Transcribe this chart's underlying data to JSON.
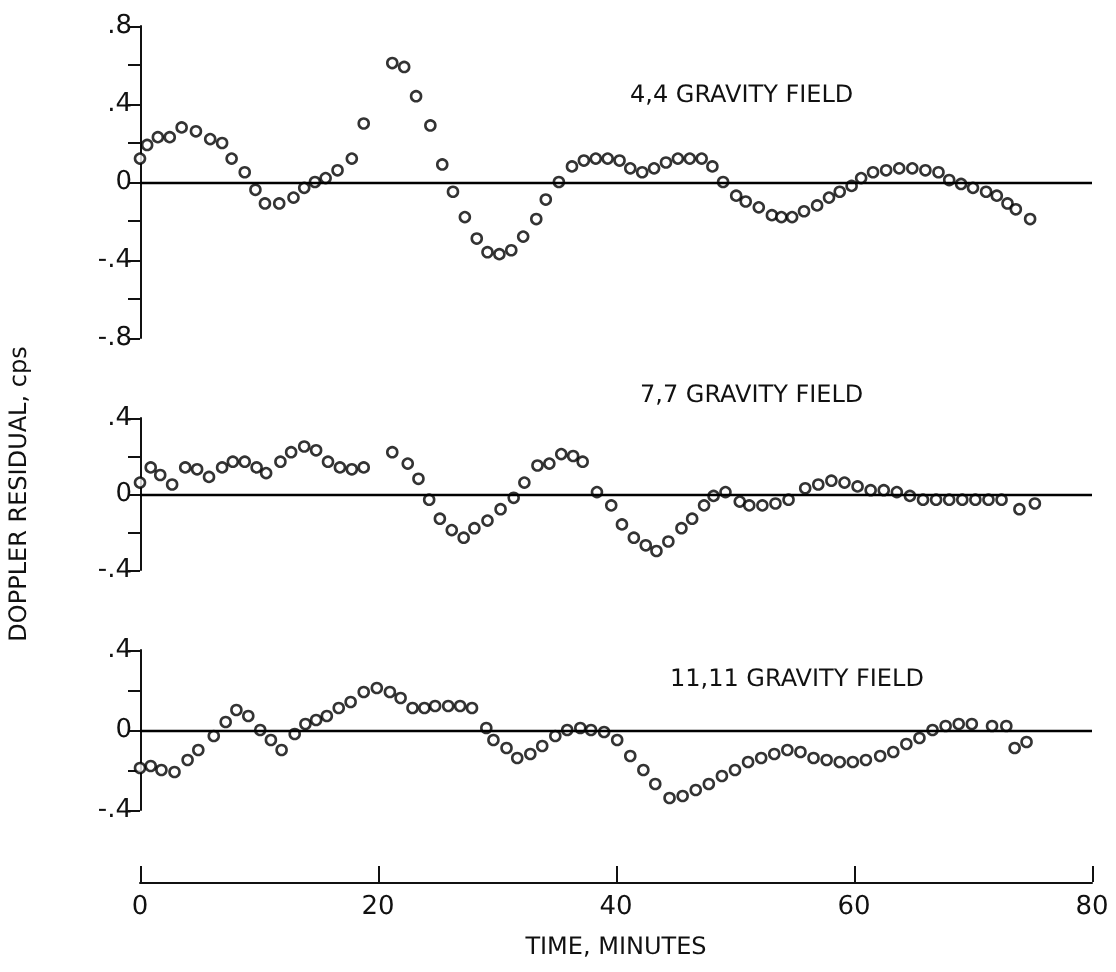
{
  "chart_data": [
    {
      "type": "scatter",
      "title": "4,4 GRAVITY FIELD",
      "marker": "circle",
      "grid": false,
      "tick_labels": "y",
      "xlim": [
        0,
        80
      ],
      "xticks": [
        0,
        20,
        40,
        60,
        80
      ],
      "ylim": [
        -0.8,
        0.8
      ],
      "yticks": [
        {
          "value": 0.8,
          "label": ".8"
        },
        {
          "value": 0.6,
          "label": null
        },
        {
          "value": 0.4,
          "label": ".4"
        },
        {
          "value": 0.2,
          "label": null
        },
        {
          "value": 0,
          "label": "0"
        },
        {
          "value": -0.2,
          "label": null
        },
        {
          "value": -0.4,
          "label": "-.4"
        },
        {
          "value": -0.6,
          "label": null
        },
        {
          "value": -0.8,
          "label": "-.8"
        }
      ],
      "ref_lines": [
        {
          "axis": "y",
          "value": 0,
          "color": "#000000"
        }
      ],
      "series": [
        {
          "color": "#000000",
          "x": [
            0,
            0.6,
            1.5,
            2.5,
            3.5,
            4.7,
            5.9,
            6.9,
            7.7,
            8.8,
            9.7,
            10.5,
            11.7,
            12.9,
            13.8,
            14.7,
            15.6,
            16.6,
            17.8,
            18.8,
            21.2,
            22.2,
            23.2,
            24.4,
            25.4,
            26.3,
            27.3,
            28.3,
            29.2,
            30.2,
            31.2,
            32.2,
            33.3,
            34.1,
            35.2,
            36.3,
            37.3,
            38.3,
            39.3,
            40.3,
            41.2,
            42.2,
            43.2,
            44.2,
            45.2,
            46.2,
            47.2,
            48.1,
            49,
            50.1,
            50.9,
            52,
            53.1,
            53.9,
            54.8,
            55.8,
            56.9,
            57.9,
            58.8,
            59.8,
            60.6,
            61.6,
            62.7,
            63.8,
            64.9,
            66,
            67.1,
            68,
            69,
            70,
            71.1,
            72,
            72.9,
            73.6,
            74.8
          ],
          "values": [
            0.12,
            0.19,
            0.23,
            0.23,
            0.28,
            0.26,
            0.22,
            0.2,
            0.12,
            0.05,
            -0.04,
            -0.11,
            -0.11,
            -0.08,
            -0.03,
            0,
            0.02,
            0.06,
            0.12,
            0.3,
            0.61,
            0.59,
            0.44,
            0.29,
            0.09,
            -0.05,
            -0.18,
            -0.29,
            -0.36,
            -0.37,
            -0.35,
            -0.28,
            -0.19,
            -0.09,
            0,
            0.08,
            0.11,
            0.12,
            0.12,
            0.11,
            0.07,
            0.05,
            0.07,
            0.1,
            0.12,
            0.12,
            0.12,
            0.08,
            0,
            -0.07,
            -0.1,
            -0.13,
            -0.17,
            -0.18,
            -0.18,
            -0.15,
            -0.12,
            -0.08,
            -0.05,
            -0.02,
            0.02,
            0.05,
            0.06,
            0.07,
            0.07,
            0.06,
            0.05,
            0.01,
            -0.01,
            -0.03,
            -0.05,
            -0.07,
            -0.11,
            -0.14,
            -0.19
          ]
        }
      ]
    },
    {
      "type": "scatter",
      "title": "7,7 GRAVITY FIELD",
      "ylabel": "DOPPLER RESIDUAL, cps",
      "marker": "circle",
      "grid": false,
      "tick_labels": "y",
      "xlim": [
        0,
        80
      ],
      "xticks": [
        0,
        20,
        40,
        60,
        80
      ],
      "ylim": [
        -0.4,
        0.4
      ],
      "yticks": [
        {
          "value": 0.4,
          "label": ".4"
        },
        {
          "value": 0.2,
          "label": null
        },
        {
          "value": 0,
          "label": "0"
        },
        {
          "value": -0.2,
          "label": null
        },
        {
          "value": -0.4,
          "label": "-.4"
        }
      ],
      "ref_lines": [
        {
          "axis": "y",
          "value": 0,
          "color": "#000000"
        }
      ],
      "series": [
        {
          "color": "#000000",
          "x": [
            0,
            0.9,
            1.7,
            2.7,
            3.8,
            4.8,
            5.8,
            6.9,
            7.8,
            8.8,
            9.8,
            10.6,
            11.8,
            12.7,
            13.8,
            14.8,
            15.8,
            16.8,
            17.8,
            18.8,
            21.2,
            22.5,
            23.4,
            24.3,
            25.2,
            26.2,
            27.2,
            28.1,
            29.2,
            30.3,
            31.4,
            32.3,
            33.4,
            34.4,
            35.4,
            36.4,
            37.2,
            38.4,
            39.6,
            40.5,
            41.5,
            42.5,
            43.4,
            44.4,
            45.5,
            46.4,
            47.4,
            48.2,
            49.2,
            50.4,
            51.2,
            52.3,
            53.4,
            54.5,
            55.9,
            57,
            58.1,
            59.2,
            60.3,
            61.4,
            62.5,
            63.6,
            64.7,
            65.8,
            66.9,
            68,
            69.1,
            70.2,
            71.3,
            72.4,
            73.9,
            75.2
          ],
          "values": [
            0.06,
            0.14,
            0.1,
            0.05,
            0.14,
            0.13,
            0.09,
            0.14,
            0.17,
            0.17,
            0.14,
            0.11,
            0.17,
            0.22,
            0.25,
            0.23,
            0.17,
            0.14,
            0.13,
            0.14,
            0.22,
            0.16,
            0.08,
            -0.03,
            -0.13,
            -0.19,
            -0.23,
            -0.18,
            -0.14,
            -0.08,
            -0.02,
            0.06,
            0.15,
            0.16,
            0.21,
            0.2,
            0.17,
            0.01,
            -0.06,
            -0.16,
            -0.23,
            -0.27,
            -0.3,
            -0.25,
            -0.18,
            -0.13,
            -0.06,
            -0.01,
            0.01,
            -0.04,
            -0.06,
            -0.06,
            -0.05,
            -0.03,
            0.03,
            0.05,
            0.07,
            0.06,
            0.04,
            0.02,
            0.02,
            0.01,
            -0.01,
            -0.03,
            -0.03,
            -0.03,
            -0.03,
            -0.03,
            -0.03,
            -0.03,
            -0.08,
            -0.05
          ]
        }
      ]
    },
    {
      "type": "scatter",
      "title": "11,11 GRAVITY FIELD",
      "xlabel": "TIME, MINUTES",
      "marker": "circle",
      "grid": false,
      "xlim": [
        0,
        80
      ],
      "xticks": [
        0,
        20,
        40,
        60,
        80
      ],
      "ylim": [
        -0.4,
        0.4
      ],
      "yticks": [
        {
          "value": 0.4,
          "label": ".4"
        },
        {
          "value": 0.2,
          "label": null
        },
        {
          "value": 0,
          "label": "0"
        },
        {
          "value": -0.2,
          "label": null
        },
        {
          "value": -0.4,
          "label": "-.4"
        }
      ],
      "ref_lines": [
        {
          "axis": "y",
          "value": 0,
          "color": "#000000"
        }
      ],
      "series": [
        {
          "color": "#000000",
          "x": [
            0,
            0.9,
            1.8,
            2.9,
            4,
            4.9,
            6.2,
            7.2,
            8.1,
            9.1,
            10.1,
            11,
            11.9,
            13,
            13.9,
            14.8,
            15.7,
            16.7,
            17.7,
            18.8,
            19.9,
            21,
            21.9,
            22.9,
            23.9,
            24.8,
            25.9,
            26.9,
            27.9,
            29.1,
            29.7,
            30.8,
            31.7,
            32.8,
            33.8,
            34.9,
            35.9,
            37,
            37.9,
            39,
            40.1,
            41.2,
            42.3,
            43.3,
            44.5,
            45.6,
            46.7,
            47.8,
            48.9,
            50,
            51.1,
            52.2,
            53.3,
            54.4,
            55.5,
            56.6,
            57.7,
            58.8,
            59.9,
            61,
            62.2,
            63.3,
            64.4,
            65.5,
            66.6,
            67.7,
            68.8,
            69.9,
            71.6,
            72.8,
            73.5,
            74.5
          ],
          "values": [
            -0.19,
            -0.18,
            -0.2,
            -0.21,
            -0.15,
            -0.1,
            -0.03,
            0.04,
            0.1,
            0.07,
            0,
            -0.05,
            -0.1,
            -0.02,
            0.03,
            0.05,
            0.07,
            0.11,
            0.14,
            0.19,
            0.21,
            0.19,
            0.16,
            0.11,
            0.11,
            0.12,
            0.12,
            0.12,
            0.11,
            0.01,
            -0.05,
            -0.09,
            -0.14,
            -0.12,
            -0.08,
            -0.03,
            0,
            0.01,
            0,
            -0.01,
            -0.05,
            -0.13,
            -0.2,
            -0.27,
            -0.34,
            -0.33,
            -0.3,
            -0.27,
            -0.23,
            -0.2,
            -0.16,
            -0.14,
            -0.12,
            -0.1,
            -0.11,
            -0.14,
            -0.15,
            -0.16,
            -0.16,
            -0.15,
            -0.13,
            -0.11,
            -0.07,
            -0.04,
            0,
            0.02,
            0.03,
            0.03,
            0.02,
            0.02,
            -0.09,
            -0.06
          ]
        }
      ]
    }
  ]
}
